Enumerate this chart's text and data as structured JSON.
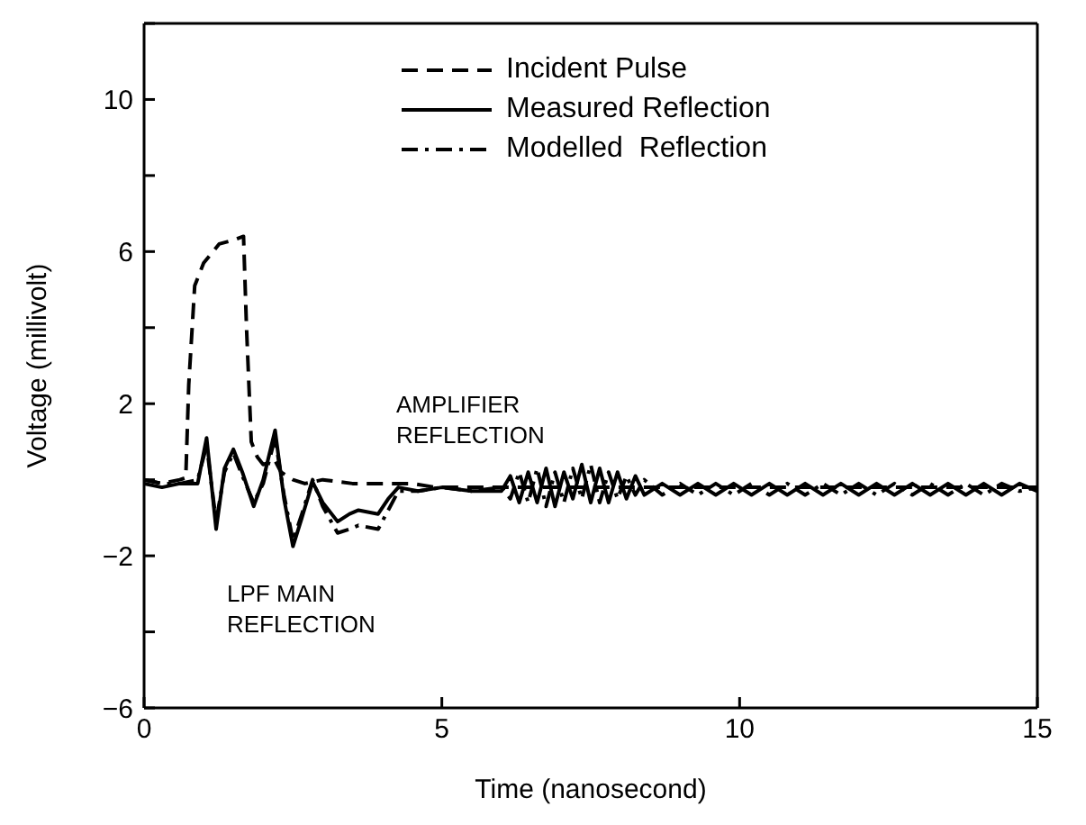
{
  "chart_data": {
    "type": "line",
    "xlabel": "Time (nanosecond)",
    "ylabel": "Voltage (millivolt)",
    "xlim": [
      0,
      15
    ],
    "xticks": [
      0,
      5,
      10,
      15
    ],
    "ylim": [
      -6,
      12
    ],
    "yticks": [
      -6,
      {
        "value": -4,
        "label": null
      },
      -2,
      {
        "value": 0,
        "label": null
      },
      2,
      {
        "value": 4,
        "label": null
      },
      6,
      {
        "value": 8,
        "label": null
      },
      10,
      {
        "value": 12,
        "label": null
      }
    ],
    "grid": false,
    "legend": "top",
    "marker": "none",
    "annotations": [
      "AMPLIFIER\nREFLECTION",
      "LPF MAIN\nREFLECTION"
    ],
    "series": [
      {
        "name": "Incident Pulse",
        "color": "#000000",
        "line_style": "dashed",
        "x": [
          0,
          0.3,
          0.6,
          0.7,
          0.75,
          0.85,
          1.0,
          1.26,
          1.5,
          1.67,
          1.72,
          1.8,
          1.9,
          2.0,
          2.2,
          2.3,
          2.5,
          2.7,
          3.0,
          3.5,
          4.0,
          4.5,
          4.9,
          5.5,
          6.5,
          8,
          10,
          12,
          15
        ],
        "values": [
          0,
          -0.1,
          0,
          0.05,
          2.5,
          5.1,
          5.7,
          6.2,
          6.3,
          6.4,
          4,
          1,
          0.6,
          0.4,
          0.5,
          0.2,
          0,
          -0.1,
          0,
          -0.1,
          -0.1,
          -0.1,
          -0.2,
          -0.2,
          -0.2,
          -0.2,
          -0.2,
          -0.2,
          -0.2
        ]
      },
      {
        "name": "Measured Reflection",
        "color": "#000000",
        "line_style": "solid",
        "x": [
          0,
          0.3,
          0.6,
          0.9,
          1.05,
          1.21,
          1.35,
          1.5,
          1.65,
          1.84,
          2.0,
          2.2,
          2.35,
          2.5,
          2.65,
          2.83,
          3.0,
          3.25,
          3.45,
          3.6,
          3.93,
          4.1,
          4.27,
          4.6,
          5.0,
          5.5,
          6.0,
          6.15,
          6.3,
          6.45,
          6.6,
          6.75,
          6.9,
          7.05,
          7.2,
          7.35,
          7.5,
          7.65,
          7.8,
          7.95,
          8.1,
          8.25,
          8.4,
          8.7,
          9.0,
          9.3,
          9.6,
          9.9,
          10.2,
          10.5,
          10.8,
          11.1,
          11.4,
          11.7,
          12.0,
          12.3,
          12.6,
          12.9,
          13.2,
          13.5,
          13.8,
          14.1,
          14.4,
          14.7,
          15.0
        ],
        "values": [
          -0.1,
          -0.2,
          -0.1,
          -0.1,
          1.1,
          -1.3,
          0.3,
          0.8,
          0.2,
          -0.7,
          0,
          1.3,
          -0.5,
          -1.75,
          -1.0,
          -0.06,
          -0.6,
          -1.1,
          -0.9,
          -0.8,
          -0.9,
          -0.5,
          -0.2,
          -0.3,
          -0.2,
          -0.3,
          -0.3,
          0.1,
          -0.6,
          0.2,
          -0.6,
          0.3,
          -0.7,
          0.2,
          -0.5,
          0.4,
          -0.6,
          0.3,
          -0.6,
          0.2,
          -0.5,
          0.1,
          -0.4,
          -0.1,
          -0.4,
          -0.1,
          -0.4,
          -0.1,
          -0.4,
          -0.1,
          -0.4,
          -0.1,
          -0.4,
          -0.1,
          -0.4,
          -0.1,
          -0.4,
          -0.1,
          -0.4,
          -0.1,
          -0.4,
          -0.1,
          -0.4,
          -0.1,
          -0.3
        ]
      },
      {
        "name": "Modelled  Reflection",
        "color": "#000000",
        "line_style": "dashdot",
        "x": [
          0,
          0.3,
          0.6,
          0.9,
          1.05,
          1.21,
          1.35,
          1.5,
          1.65,
          1.84,
          2.0,
          2.2,
          2.35,
          2.5,
          2.65,
          2.83,
          3.0,
          3.25,
          3.45,
          3.6,
          3.93,
          4.1,
          4.27,
          4.6,
          5.0,
          5.5,
          6.0,
          6.15,
          6.3,
          6.45,
          6.6,
          6.75,
          6.9,
          7.05,
          7.2,
          7.35,
          7.5,
          7.65,
          7.8,
          7.95,
          8.1,
          8.25,
          8.4,
          8.7,
          9.0,
          9.3,
          9.6,
          9.9,
          10.2,
          10.5,
          10.8,
          11.1,
          11.4,
          11.7,
          12.0,
          12.3,
          12.6,
          12.9,
          13.2,
          13.5,
          13.8,
          14.1,
          14.4,
          14.7,
          15.0
        ],
        "values": [
          0,
          -0.1,
          -0.1,
          0,
          0.9,
          -1.1,
          0.2,
          0.7,
          0.1,
          -0.6,
          -0.1,
          1.1,
          -0.4,
          -1.6,
          -0.9,
          0,
          -0.7,
          -1.4,
          -1.3,
          -1.2,
          -1.3,
          -0.8,
          -0.3,
          -0.3,
          -0.2,
          -0.3,
          -0.2,
          -0.5,
          0.2,
          -0.6,
          0.3,
          -0.7,
          0.2,
          -0.6,
          0.3,
          -0.5,
          0.4,
          -0.6,
          0.2,
          -0.5,
          0.1,
          -0.4,
          0,
          -0.4,
          -0.1,
          -0.4,
          -0.1,
          -0.4,
          -0.1,
          -0.4,
          -0.1,
          -0.4,
          -0.1,
          -0.4,
          -0.1,
          -0.4,
          -0.1,
          -0.4,
          -0.1,
          -0.4,
          -0.1,
          -0.4,
          -0.1,
          -0.3,
          -0.2
        ]
      }
    ]
  }
}
